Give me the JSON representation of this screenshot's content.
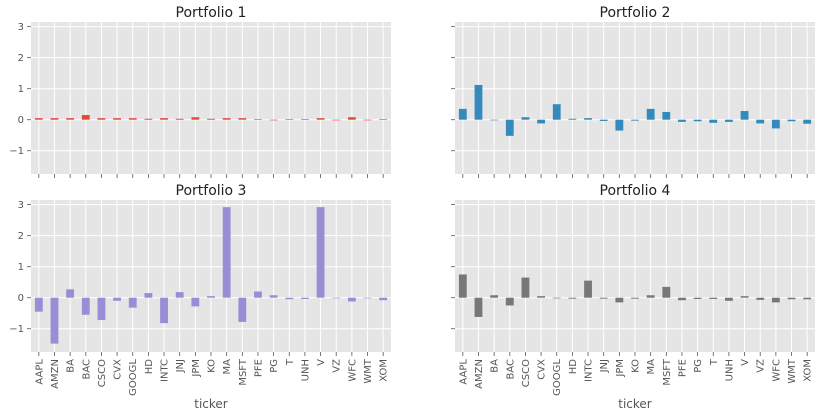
{
  "chart_data": [
    {
      "type": "bar",
      "title": "Portfolio 1",
      "xlabel": "ticker",
      "ylabel": "",
      "ylim": [
        -1.75,
        3.15
      ],
      "yticks": [
        -1,
        0,
        1,
        2,
        3
      ],
      "grid": true,
      "legend": "none",
      "color": "#E24A33",
      "categories": [
        "AAPL",
        "AMZN",
        "BA",
        "BAC",
        "CSCO",
        "CVX",
        "GOOGL",
        "HD",
        "INTC",
        "JNJ",
        "JPM",
        "KO",
        "MA",
        "MSFT",
        "PFE",
        "PG",
        "T",
        "UNH",
        "V",
        "VZ",
        "WFC",
        "WMT",
        "XOM"
      ],
      "values": [
        0.05,
        0.05,
        0.05,
        0.15,
        0.05,
        0.05,
        0.05,
        0.03,
        0.05,
        0.03,
        0.08,
        0.03,
        0.05,
        0.05,
        0.02,
        0.0,
        0.02,
        0.02,
        0.05,
        0.0,
        0.08,
        0.0,
        0.02
      ]
    },
    {
      "type": "bar",
      "title": "Portfolio 2",
      "xlabel": "ticker",
      "ylabel": "",
      "ylim": [
        -1.75,
        3.15
      ],
      "yticks": [
        -1,
        0,
        1,
        2,
        3
      ],
      "grid": true,
      "legend": "none",
      "color": "#348ABD",
      "categories": [
        "AAPL",
        "AMZN",
        "BA",
        "BAC",
        "CSCO",
        "CVX",
        "GOOGL",
        "HD",
        "INTC",
        "JNJ",
        "JPM",
        "KO",
        "MA",
        "MSFT",
        "PFE",
        "PG",
        "T",
        "UNH",
        "V",
        "VZ",
        "WFC",
        "WMT",
        "XOM"
      ],
      "values": [
        0.35,
        1.12,
        0.0,
        -0.52,
        0.08,
        -0.12,
        0.5,
        0.03,
        0.05,
        -0.04,
        -0.35,
        -0.03,
        0.35,
        0.25,
        -0.07,
        -0.05,
        -0.1,
        -0.07,
        0.28,
        -0.12,
        -0.28,
        -0.05,
        -0.13
      ]
    },
    {
      "type": "bar",
      "title": "Portfolio 3",
      "xlabel": "ticker",
      "ylabel": "",
      "ylim": [
        -1.75,
        3.15
      ],
      "yticks": [
        -1,
        0,
        1,
        2,
        3
      ],
      "grid": true,
      "legend": "none",
      "color": "#988ED5",
      "categories": [
        "AAPL",
        "AMZN",
        "BA",
        "BAC",
        "CSCO",
        "CVX",
        "GOOGL",
        "HD",
        "INTC",
        "JNJ",
        "JPM",
        "KO",
        "MA",
        "MSFT",
        "PFE",
        "PG",
        "T",
        "UNH",
        "V",
        "VZ",
        "WFC",
        "WMT",
        "XOM"
      ],
      "values": [
        -0.45,
        -1.48,
        0.27,
        -0.55,
        -0.72,
        -0.1,
        -0.32,
        0.15,
        -0.82,
        0.18,
        -0.28,
        0.05,
        2.92,
        -0.78,
        0.2,
        0.08,
        -0.05,
        -0.04,
        2.92,
        0.0,
        -0.12,
        0.0,
        -0.08
      ]
    },
    {
      "type": "bar",
      "title": "Portfolio 4",
      "xlabel": "ticker",
      "ylabel": "",
      "ylim": [
        -1.75,
        3.15
      ],
      "yticks": [
        -1,
        0,
        1,
        2,
        3
      ],
      "grid": true,
      "legend": "none",
      "color": "#777777",
      "categories": [
        "AAPL",
        "AMZN",
        "BA",
        "BAC",
        "CSCO",
        "CVX",
        "GOOGL",
        "HD",
        "INTC",
        "JNJ",
        "JPM",
        "KO",
        "MA",
        "MSFT",
        "PFE",
        "PG",
        "T",
        "UNH",
        "V",
        "VZ",
        "WFC",
        "WMT",
        "XOM"
      ],
      "values": [
        0.75,
        -0.62,
        0.08,
        -0.25,
        0.65,
        0.05,
        0.0,
        -0.03,
        0.55,
        -0.03,
        -0.15,
        -0.03,
        0.08,
        0.35,
        -0.08,
        -0.04,
        -0.04,
        -0.1,
        0.05,
        -0.07,
        -0.15,
        -0.05,
        -0.05
      ]
    }
  ]
}
